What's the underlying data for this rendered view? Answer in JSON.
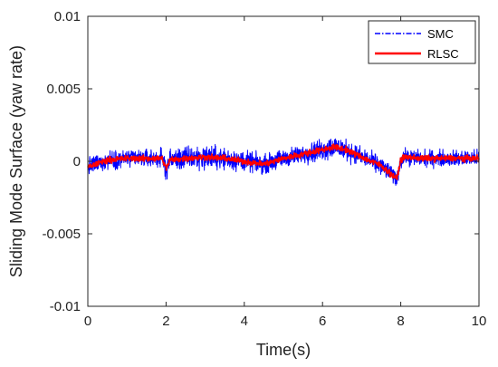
{
  "chart_data": {
    "type": "line",
    "title": "",
    "xlabel": "Time(s)",
    "ylabel": "Sliding Mode Surface (yaw rate)",
    "xlim": [
      0,
      10
    ],
    "ylim": [
      -0.01,
      0.01
    ],
    "xticks": [
      0,
      2,
      4,
      6,
      8,
      10
    ],
    "xtick_labels": [
      "0",
      "2",
      "4",
      "6",
      "8",
      "10"
    ],
    "yticks": [
      -0.01,
      -0.005,
      0,
      0.005,
      0.01
    ],
    "ytick_labels": [
      "-0.01",
      "-0.005",
      "0",
      "0.005",
      "0.01"
    ],
    "grid": false,
    "legend_position": "top-right",
    "series": [
      {
        "name": "SMC",
        "color": "#0000ff",
        "line_style": "dash-dot",
        "x": [
          0,
          0.5,
          1.0,
          1.5,
          1.9,
          2.0,
          2.1,
          2.5,
          3.0,
          3.5,
          4.0,
          4.5,
          5.0,
          5.5,
          6.0,
          6.3,
          6.6,
          7.0,
          7.5,
          7.9,
          8.0,
          8.1,
          8.5,
          9.0,
          9.5,
          10.0
        ],
        "center": [
          -0.0004,
          0.0001,
          0.0002,
          0.0002,
          0.0002,
          -0.0005,
          0.0001,
          0.0002,
          0.0003,
          0.0002,
          0.0,
          -0.0002,
          0.0002,
          0.0005,
          0.0008,
          0.001,
          0.0008,
          0.0003,
          -0.0003,
          -0.0012,
          0.0001,
          0.0003,
          0.0002,
          0.0002,
          0.0002,
          0.0002
        ],
        "spread": [
          0.0009,
          0.0009,
          0.0009,
          0.0009,
          0.0009,
          0.0012,
          0.001,
          0.0012,
          0.0012,
          0.0011,
          0.001,
          0.0009,
          0.0009,
          0.0009,
          0.0011,
          0.0012,
          0.001,
          0.0009,
          0.0009,
          0.0008,
          0.0008,
          0.0008,
          0.0008,
          0.0008,
          0.0008,
          0.0008
        ]
      },
      {
        "name": "RLSC",
        "color": "#ff0000",
        "line_style": "solid",
        "x": [
          0,
          0.5,
          1.0,
          1.5,
          1.9,
          2.0,
          2.1,
          2.5,
          3.0,
          3.5,
          4.0,
          4.5,
          5.0,
          5.5,
          6.0,
          6.3,
          6.6,
          7.0,
          7.5,
          7.9,
          8.0,
          8.1,
          8.5,
          9.0,
          9.5,
          10.0
        ],
        "center": [
          -0.0004,
          0.0001,
          0.0002,
          0.0002,
          0.0002,
          -0.0005,
          0.0001,
          0.0002,
          0.0003,
          0.0002,
          0.0,
          -0.0002,
          0.0002,
          0.0005,
          0.0008,
          0.001,
          0.0008,
          0.0003,
          -0.0003,
          -0.0012,
          0.0001,
          0.0003,
          0.0002,
          0.0002,
          0.0002,
          0.0002
        ],
        "spread": [
          0.0003,
          0.0003,
          0.0003,
          0.0003,
          0.0003,
          0.0003,
          0.0003,
          0.0003,
          0.0003,
          0.0003,
          0.0003,
          0.0003,
          0.0003,
          0.0003,
          0.0003,
          0.0003,
          0.0003,
          0.0003,
          0.0003,
          0.0003,
          0.0003,
          0.0003,
          0.0003,
          0.0003,
          0.0003,
          0.0003
        ]
      }
    ]
  }
}
